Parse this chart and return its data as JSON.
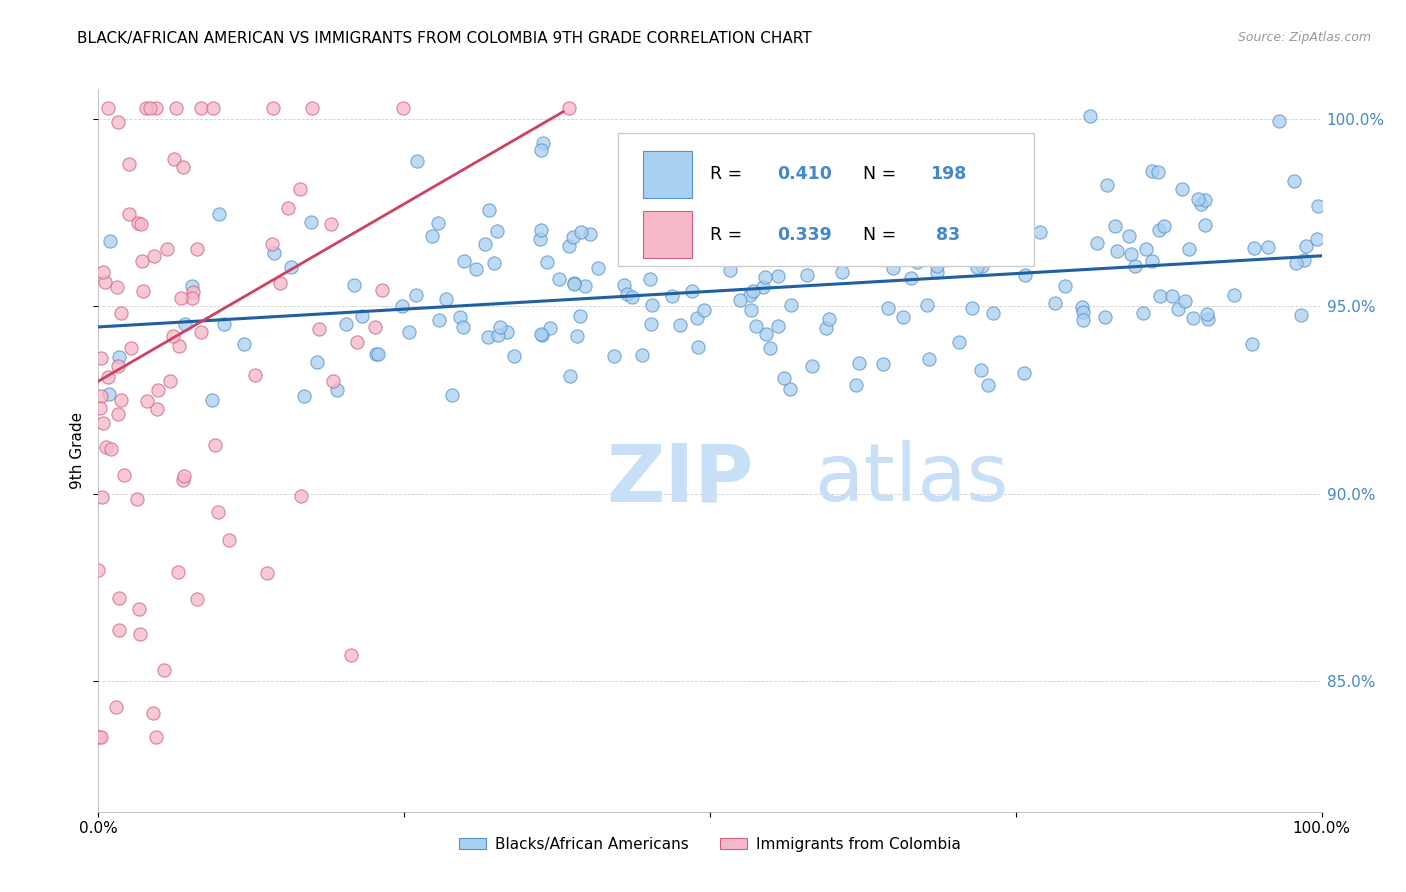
{
  "title": "BLACK/AFRICAN AMERICAN VS IMMIGRANTS FROM COLOMBIA 9TH GRADE CORRELATION CHART",
  "source": "Source: ZipAtlas.com",
  "ylabel": "9th Grade",
  "xlim": [
    0.0,
    1.0
  ],
  "ylim": [
    0.815,
    1.008
  ],
  "yticks": [
    0.85,
    0.9,
    0.95,
    1.0
  ],
  "ytick_labels": [
    "85.0%",
    "90.0%",
    "95.0%",
    "100.0%"
  ],
  "blue_R": 0.41,
  "blue_N": 198,
  "pink_R": 0.339,
  "pink_N": 83,
  "blue_color": "#a8d0f0",
  "pink_color": "#f5b8c8",
  "blue_edge_color": "#5590cc",
  "pink_edge_color": "#d06080",
  "blue_line_color": "#2060a0",
  "pink_line_color": "#d04060",
  "watermark_zip_color": "#d8eaf8",
  "watermark_atlas_color": "#c8dff0",
  "legend_label_blue": "Blacks/African Americans",
  "legend_label_pink": "Immigrants from Colombia",
  "title_fontsize": 11,
  "blue_scatter_seed": 42,
  "pink_scatter_seed": 7,
  "blue_trend_x": [
    0.0,
    1.0
  ],
  "blue_trend_y": [
    0.9445,
    0.9635
  ],
  "pink_trend_x": [
    0.0,
    0.38
  ],
  "pink_trend_y": [
    0.93,
    1.002
  ],
  "right_yaxis_color": "#4488cc"
}
